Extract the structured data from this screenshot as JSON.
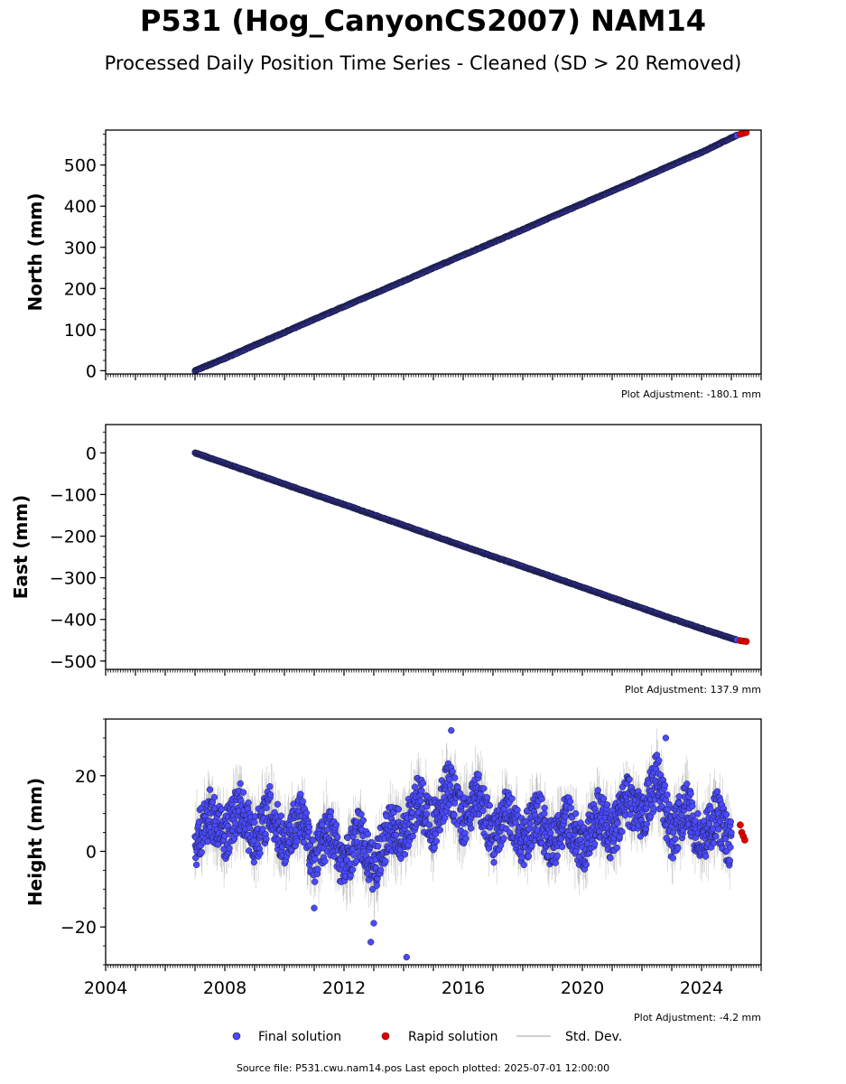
{
  "title": "P531 (Hog_CanyonCS2007) NAM14",
  "subtitle": "Processed Daily Position Time Series - Cleaned (SD > 20 Removed)",
  "source_note": "Source file: P531.cwu.nam14.pos  Last epoch plotted: 2025-07-01 12:00:00",
  "colors": {
    "final": "#4a4aff",
    "final_edge": "#1a1a3a",
    "rapid": "#e00000",
    "std": "#b0b0b0"
  },
  "chart_data": [
    {
      "type": "scatter",
      "id": "north",
      "ylabel": "North (mm)",
      "xlim": [
        2004,
        2026
      ],
      "ylim": [
        -8,
        585
      ],
      "yticks": [
        0,
        100,
        200,
        300,
        400,
        500
      ],
      "adjustment": "Plot Adjustment: -180.1 mm",
      "series": [
        {
          "kind": "final",
          "x": [
            2007.0,
            2008.0,
            2009.0,
            2010.0,
            2011.0,
            2012.0,
            2013.0,
            2014.0,
            2015.0,
            2016.0,
            2017.0,
            2018.0,
            2019.0,
            2020.0,
            2021.0,
            2022.0,
            2023.0,
            2024.0,
            2025.2
          ],
          "y": [
            0,
            30,
            62,
            93,
            125,
            156,
            187,
            218,
            250,
            281,
            312,
            343,
            375,
            406,
            437,
            468,
            500,
            531,
            573
          ]
        },
        {
          "kind": "rapid",
          "x": [
            2025.3,
            2025.4,
            2025.5
          ],
          "y": [
            575,
            577,
            579
          ]
        }
      ]
    },
    {
      "type": "scatter",
      "id": "east",
      "ylabel": "East (mm)",
      "xlim": [
        2004,
        2026
      ],
      "ylim": [
        -520,
        68
      ],
      "yticks": [
        0,
        -100,
        -200,
        -300,
        -400,
        -500
      ],
      "ytick_labels": [
        "0",
        "−100",
        "−200",
        "−300",
        "−400",
        "−500"
      ],
      "adjustment": "Plot Adjustment: 137.9 mm",
      "series": [
        {
          "kind": "final",
          "x": [
            2007.0,
            2008.0,
            2009.0,
            2010.0,
            2011.0,
            2012.0,
            2013.0,
            2014.0,
            2015.0,
            2016.0,
            2017.0,
            2018.0,
            2019.0,
            2020.0,
            2021.0,
            2022.0,
            2023.0,
            2024.0,
            2025.2
          ],
          "y": [
            0,
            -25,
            -50,
            -75,
            -100,
            -124,
            -149,
            -174,
            -199,
            -224,
            -249,
            -273,
            -298,
            -323,
            -348,
            -373,
            -398,
            -422,
            -450
          ]
        },
        {
          "kind": "rapid",
          "x": [
            2025.3,
            2025.4,
            2025.5
          ],
          "y": [
            -451,
            -452,
            -453
          ]
        }
      ]
    },
    {
      "type": "scatter",
      "id": "height",
      "ylabel": "Height (mm)",
      "xlim": [
        2004,
        2026
      ],
      "ylim": [
        -30,
        35
      ],
      "yticks": [
        20,
        0,
        -20
      ],
      "ytick_labels": [
        "20",
        "0",
        "−20"
      ],
      "xticks": [
        2004,
        2008,
        2012,
        2016,
        2020,
        2024
      ],
      "xtick_labels": [
        "2004",
        "2008",
        "2012",
        "2016",
        "2020",
        "2024"
      ],
      "adjustment": "Plot Adjustment: -4.2 mm",
      "series": [
        {
          "kind": "final",
          "x": [
            2007.0,
            2007.5,
            2008.0,
            2008.5,
            2009.0,
            2009.5,
            2010.0,
            2010.5,
            2011.0,
            2011.5,
            2012.0,
            2012.5,
            2013.0,
            2013.5,
            2014.0,
            2014.5,
            2015.0,
            2015.5,
            2016.0,
            2016.5,
            2017.0,
            2017.5,
            2018.0,
            2018.5,
            2019.0,
            2019.5,
            2020.0,
            2020.5,
            2021.0,
            2021.5,
            2022.0,
            2022.5,
            2023.0,
            2023.5,
            2024.0,
            2024.5,
            2025.0
          ],
          "y": [
            2,
            10,
            4,
            12,
            3,
            11,
            2,
            10,
            -2,
            6,
            -4,
            5,
            -5,
            6,
            4,
            14,
            6,
            18,
            8,
            16,
            3,
            12,
            2,
            10,
            1,
            9,
            0,
            10,
            4,
            14,
            8,
            20,
            4,
            12,
            2,
            10,
            1
          ]
        },
        {
          "kind": "rapid",
          "x": [
            2025.3,
            2025.35,
            2025.4,
            2025.45
          ],
          "y": [
            7,
            5,
            4,
            3
          ]
        }
      ]
    }
  ],
  "legend": {
    "final_label": "Final solution",
    "rapid_label": "Rapid solution",
    "std_label": "Std. Dev."
  }
}
